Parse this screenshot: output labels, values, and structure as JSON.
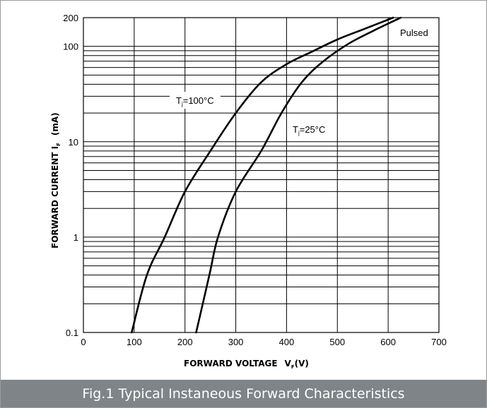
{
  "caption": "Fig.1 Typical Instaneous Forward Characteristics",
  "chart_data": {
    "type": "line",
    "x_axis": {
      "label": "FORWARD VOLTAGE",
      "symbol": "V",
      "subscript": "F",
      "unit": "(V)",
      "range": [
        0,
        700
      ],
      "ticks": [
        0,
        100,
        200,
        300,
        400,
        500,
        600,
        700
      ]
    },
    "y_axis": {
      "label": "FORWARD CURRENT I",
      "subscript": "F",
      "unit": "(mA)",
      "scale": "log",
      "range": [
        0.1,
        200
      ],
      "tick_values": [
        0.1,
        1,
        10,
        100,
        200
      ],
      "tick_labels": [
        "0.1",
        "1",
        "10",
        "100",
        "200"
      ]
    },
    "grid": true,
    "annotation": "Pulsed",
    "series": [
      {
        "name": "T",
        "name_subscript": "j",
        "name_suffix": "=100°C",
        "points": [
          [
            95,
            0.1
          ],
          [
            125,
            0.4
          ],
          [
            160,
            1
          ],
          [
            200,
            3
          ],
          [
            250,
            8
          ],
          [
            300,
            20
          ],
          [
            350,
            42
          ],
          [
            400,
            65
          ],
          [
            450,
            88
          ],
          [
            500,
            118
          ],
          [
            550,
            150
          ],
          [
            610,
            200
          ]
        ]
      },
      {
        "name": "T",
        "name_subscript": "j",
        "name_suffix": "=25°C",
        "points": [
          [
            222,
            0.1
          ],
          [
            248,
            0.4
          ],
          [
            265,
            1
          ],
          [
            300,
            3
          ],
          [
            350,
            8
          ],
          [
            390,
            20
          ],
          [
            430,
            42
          ],
          [
            470,
            68
          ],
          [
            520,
            105
          ],
          [
            570,
            145
          ],
          [
            625,
            200
          ]
        ]
      }
    ]
  }
}
